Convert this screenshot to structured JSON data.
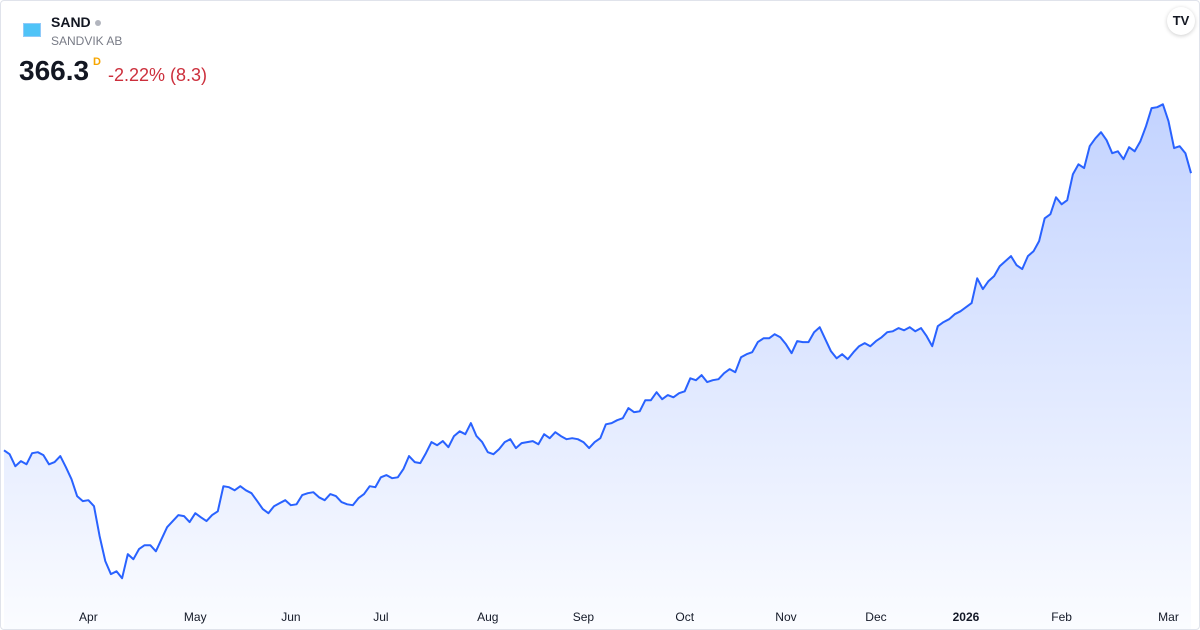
{
  "header": {
    "symbol": "SAND",
    "name": "SANDVIK AB",
    "price": 366.3,
    "interval": "D",
    "change": "-2.22% (8.3)"
  },
  "chart_data": {
    "type": "area",
    "color": "#2962ff",
    "values": [
      251.3,
      249.7,
      244.7,
      246.8,
      245.5,
      250.1,
      250.5,
      249.3,
      245.5,
      246.4,
      248.9,
      244.3,
      239.3,
      232.3,
      230.2,
      230.6,
      228.1,
      215.7,
      205.3,
      199.9,
      201.1,
      198.2,
      208.2,
      206.1,
      210.3,
      211.9,
      211.9,
      209.4,
      214.4,
      219.4,
      221.9,
      224.4,
      224.0,
      221.5,
      225.2,
      223.5,
      221.9,
      224.4,
      226.0,
      236.4,
      236.0,
      234.7,
      236.4,
      234.7,
      233.5,
      230.2,
      226.9,
      225.2,
      228.1,
      229.4,
      230.6,
      228.5,
      228.9,
      232.7,
      233.5,
      233.9,
      231.8,
      230.6,
      233.1,
      232.3,
      229.8,
      228.9,
      228.5,
      231.4,
      233.1,
      236.4,
      236.0,
      240.1,
      241.0,
      239.7,
      240.1,
      243.5,
      248.9,
      246.4,
      246.0,
      250.1,
      254.7,
      253.4,
      255.1,
      252.6,
      257.2,
      259.2,
      258.0,
      262.6,
      257.2,
      254.7,
      250.5,
      249.7,
      251.8,
      254.7,
      255.9,
      252.2,
      254.3,
      254.7,
      255.1,
      253.8,
      258.0,
      256.3,
      258.8,
      257.2,
      255.9,
      256.3,
      255.9,
      254.7,
      252.2,
      254.7,
      256.3,
      262.1,
      262.6,
      263.8,
      264.6,
      268.8,
      267.1,
      267.5,
      272.1,
      272.1,
      275.4,
      272.5,
      274.2,
      273.3,
      275.0,
      275.8,
      281.2,
      280.4,
      282.5,
      279.6,
      280.4,
      280.8,
      283.3,
      285.0,
      283.7,
      289.9,
      291.2,
      292.0,
      296.2,
      297.8,
      297.8,
      299.5,
      298.2,
      295.3,
      291.6,
      296.6,
      296.2,
      296.2,
      300.3,
      302.4,
      297.4,
      292.4,
      289.5,
      291.2,
      289.1,
      292.0,
      294.5,
      295.8,
      294.5,
      296.6,
      298.2,
      300.3,
      300.7,
      302.0,
      301.1,
      302.4,
      300.7,
      302.0,
      298.7,
      294.5,
      302.8,
      304.5,
      305.7,
      307.8,
      309.0,
      310.7,
      312.4,
      322.7,
      318.2,
      321.5,
      323.6,
      327.7,
      329.8,
      331.9,
      328.1,
      326.5,
      331.9,
      333.9,
      338.1,
      347.6,
      349.3,
      356.3,
      353.4,
      355.1,
      365.9,
      370.0,
      368.4,
      377.5,
      380.8,
      383.3,
      380.0,
      374.6,
      375.4,
      372.1,
      377.1,
      375.4,
      379.6,
      385.8,
      393.3,
      393.7,
      394.9,
      387.9,
      376.7,
      377.5,
      374.6,
      366.3
    ],
    "xlim": [
      0,
      211
    ],
    "xticks": [
      {
        "value": 15,
        "label": "Apr"
      },
      {
        "value": 34,
        "label": "May"
      },
      {
        "value": 51,
        "label": "Jun"
      },
      {
        "value": 67,
        "label": "Jul"
      },
      {
        "value": 86,
        "label": "Aug"
      },
      {
        "value": 103,
        "label": "Sep"
      },
      {
        "value": 121,
        "label": "Oct"
      },
      {
        "value": 139,
        "label": "Nov"
      },
      {
        "value": 155,
        "label": "Dec"
      },
      {
        "value": 171,
        "label": "2026"
      },
      {
        "value": 188,
        "label": "Feb"
      },
      {
        "value": 207,
        "label": "Mar"
      }
    ],
    "ylim": [
      190,
      400
    ]
  }
}
